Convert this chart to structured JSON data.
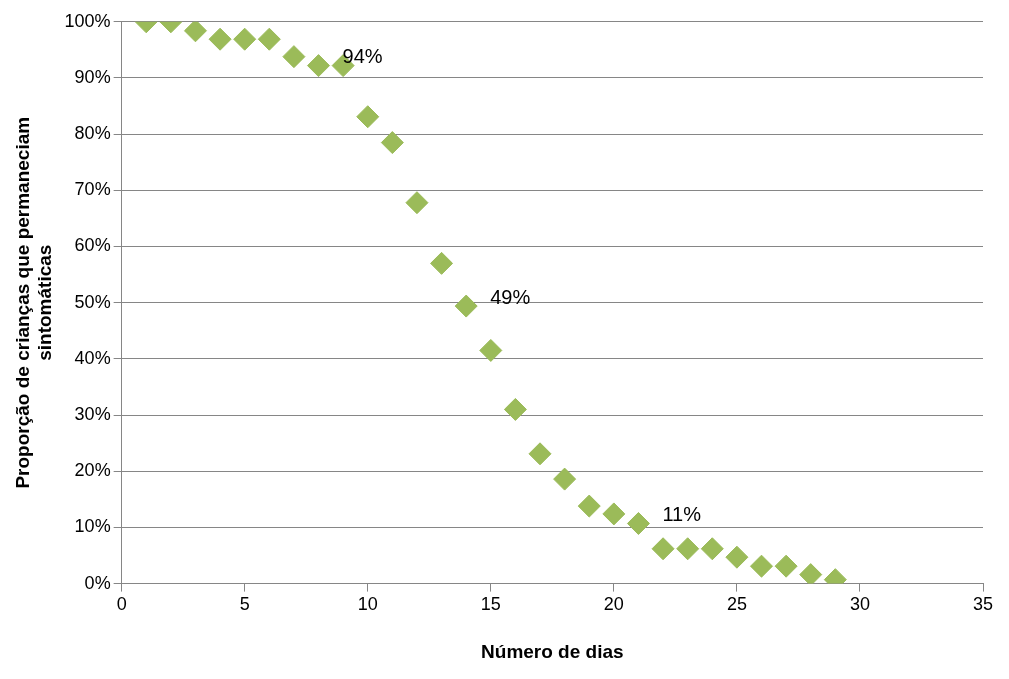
{
  "chart_data": {
    "type": "scatter",
    "xlabel": "Número de dias",
    "ylabel": "Proporção de crianças que permaneciam sintomáticas",
    "x": [
      1,
      2,
      3,
      4,
      5,
      6,
      7,
      8,
      9,
      10,
      11,
      12,
      13,
      14,
      15,
      16,
      17,
      18,
      19,
      20,
      21,
      22,
      23,
      24,
      25,
      26,
      27,
      28,
      29
    ],
    "series": [
      {
        "color": "#9bbb59",
        "values": [
          100,
          100,
          98.4,
          96.9,
          96.9,
          96.9,
          93.8,
          92.2,
          92.2,
          83.1,
          78.5,
          67.8,
          57,
          49.4,
          41.5,
          31,
          23.1,
          18.6,
          13.8,
          12.4,
          10.7,
          6.2,
          6.2,
          6.2,
          4.7,
          3.1,
          3.1,
          1.6,
          0.7
        ]
      }
    ],
    "marker": "diamond",
    "grid": "y",
    "legend": false,
    "xlim": [
      0,
      35
    ],
    "xticks": [
      0,
      5,
      10,
      15,
      20,
      25,
      30,
      35
    ],
    "ylim": [
      0,
      100
    ],
    "yticks": [
      {
        "value": 0,
        "label": "0%"
      },
      {
        "value": 10,
        "label": "10%"
      },
      {
        "value": 20,
        "label": "20%"
      },
      {
        "value": 30,
        "label": "30%"
      },
      {
        "value": 40,
        "label": "40%"
      },
      {
        "value": 50,
        "label": "50%"
      },
      {
        "value": 60,
        "label": "60%"
      },
      {
        "value": 70,
        "label": "70%"
      },
      {
        "value": 80,
        "label": "80%"
      },
      {
        "value": 90,
        "label": "90%"
      },
      {
        "value": 100,
        "label": "100%"
      }
    ],
    "annotations": [
      {
        "text": "94%",
        "x": 8,
        "y": 92.2
      },
      {
        "text": "49%",
        "x": 14,
        "y": 49.4
      },
      {
        "text": "11%",
        "x": 21,
        "y": 10.7
      }
    ]
  }
}
